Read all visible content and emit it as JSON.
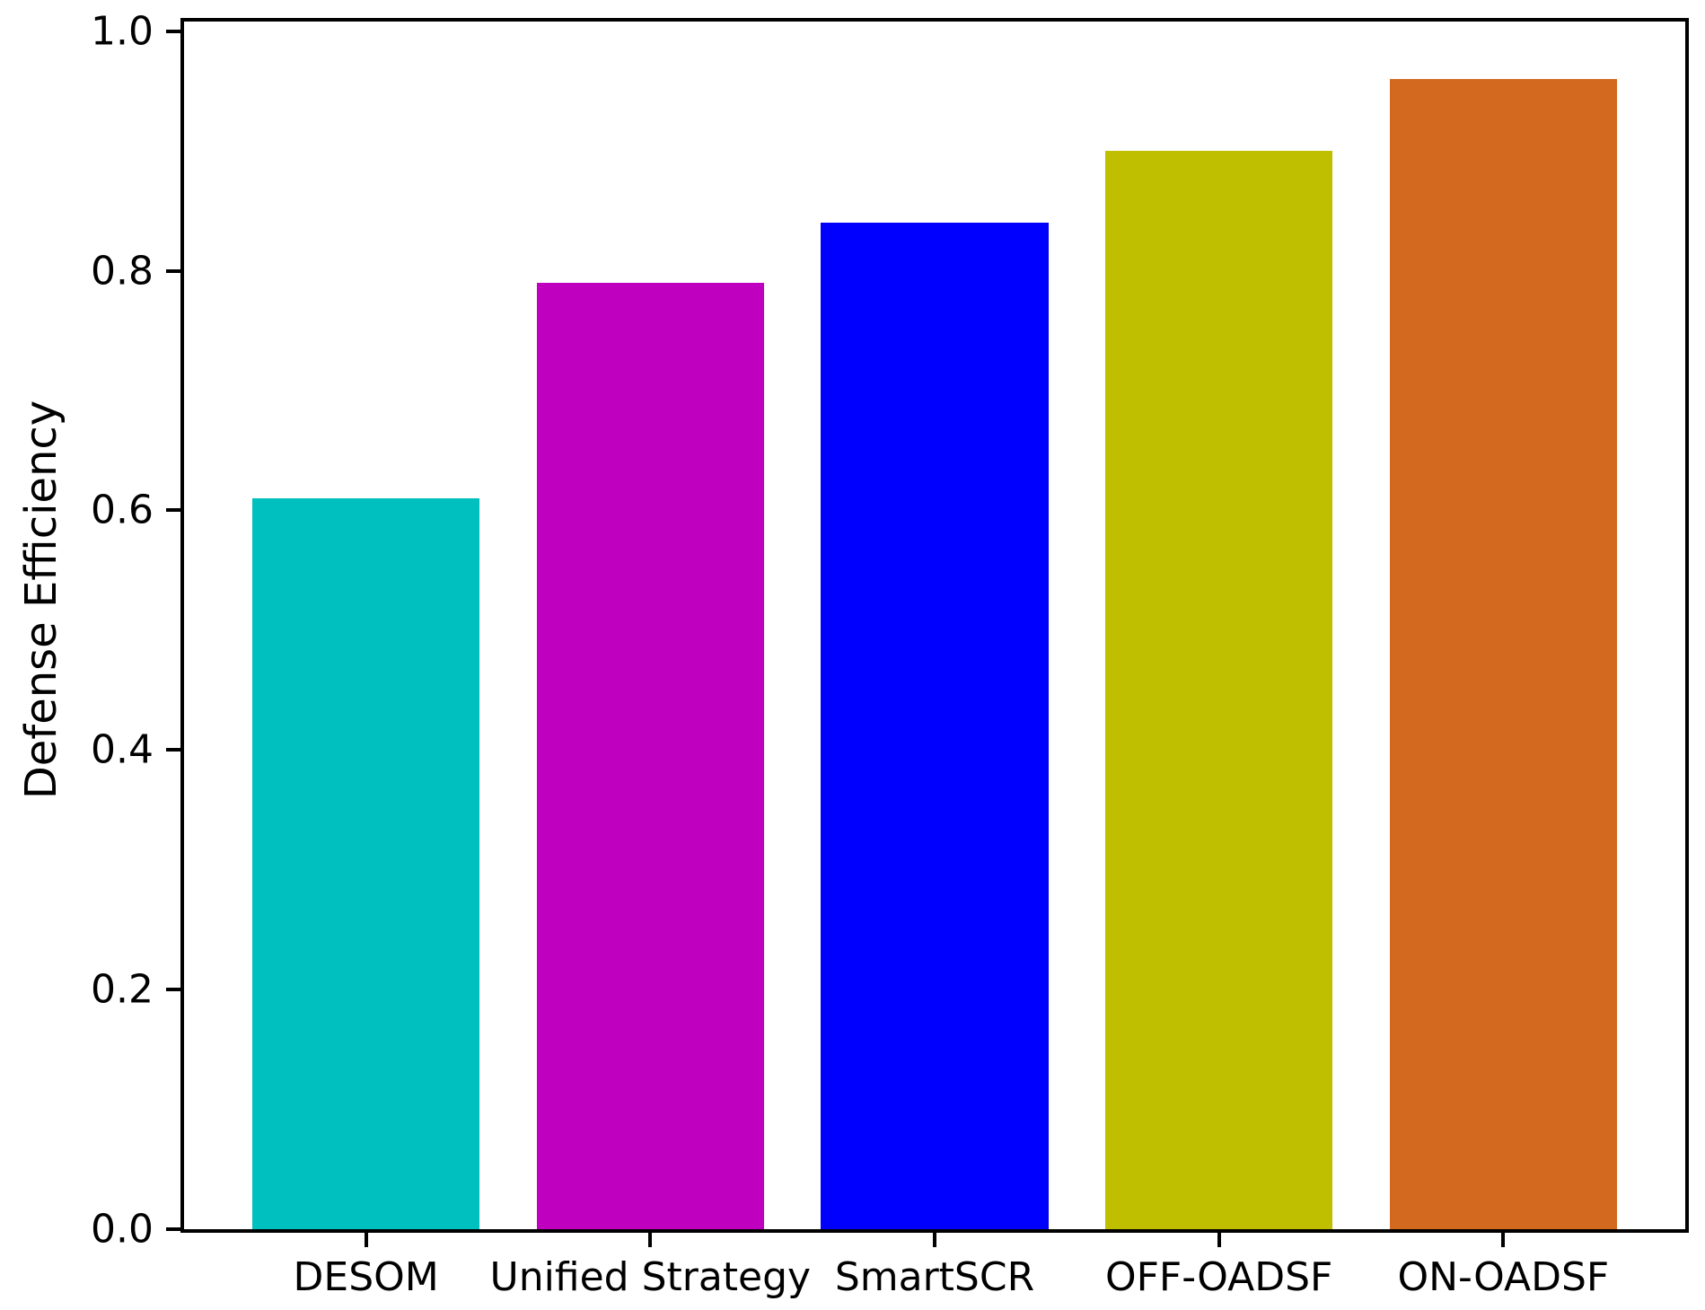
{
  "chart_data": {
    "type": "bar",
    "title": "",
    "categories": [
      "DESOM",
      "Unified Strategy",
      "SmartSCR",
      "OFF-OADSF",
      "ON-OADSF"
    ],
    "values": [
      0.61,
      0.79,
      0.84,
      0.9,
      0.96
    ],
    "bar_colors": [
      "#00BFBF",
      "#BF00BF",
      "#0000FF",
      "#BFBF00",
      "#D2691E"
    ],
    "xlabel": "",
    "ylabel": "Defense Efficiency",
    "ylim": [
      0,
      1.008
    ],
    "yticks": [
      "0.0",
      "0.2",
      "0.4",
      "0.6",
      "0.8",
      "1.0"
    ],
    "grid": false,
    "legend": "none",
    "bar_width_fraction": 0.8,
    "x_margin_fraction": 0.24,
    "axis_color": "#000000",
    "background_color": "#FFFFFF"
  }
}
